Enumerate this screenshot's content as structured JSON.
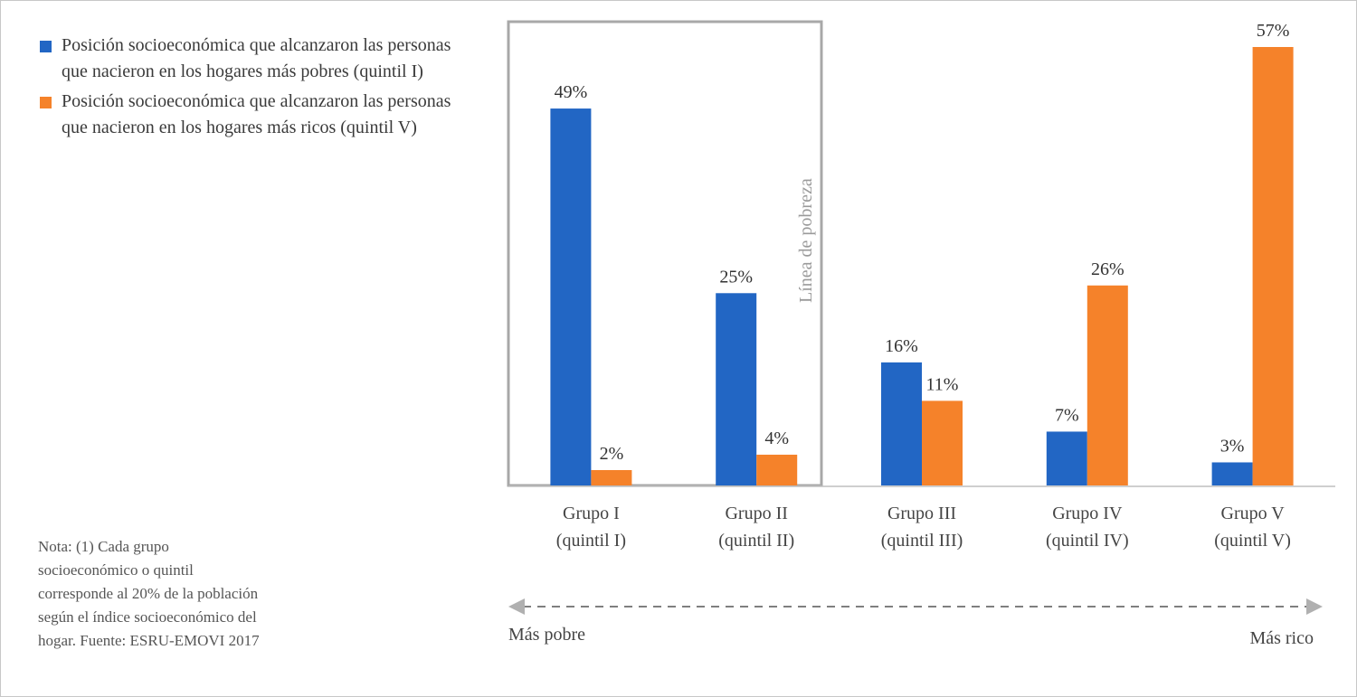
{
  "chart_data": {
    "type": "bar",
    "categories": [
      [
        "Grupo I",
        "(quintil I)"
      ],
      [
        "Grupo II",
        "(quintil II)"
      ],
      [
        "Grupo III",
        "(quintil III)"
      ],
      [
        "Grupo IV",
        "(quintil IV)"
      ],
      [
        "Grupo V",
        "(quintil V)"
      ]
    ],
    "series": [
      {
        "name": "Posición socioeconómica que alcanzaron las personas que nacieron en los hogares más pobres (quintil I)",
        "color": "#2266c4",
        "values": [
          49,
          25,
          16,
          7,
          3
        ],
        "labels": [
          "49%",
          "25%",
          "16%",
          "7%",
          "3%"
        ]
      },
      {
        "name": "Posición socioeconómica que alcanzaron las personas que nacieron en los hogares más ricos (quintil V)",
        "color": "#f5822a",
        "values": [
          2,
          4,
          11,
          26,
          57
        ],
        "labels": [
          "2%",
          "4%",
          "11%",
          "26%",
          "57%"
        ]
      }
    ],
    "ylim": [
      0,
      60
    ],
    "poverty_line_label": "Línea de pobreza",
    "axis_arrow": {
      "left_label": "Más pobre",
      "right_label": "Más rico"
    },
    "legend_position": "top-left",
    "grid": false
  },
  "note": "Nota: (1) Cada grupo\nsocioeconómico o quintil\ncorresponde al 20% de la población\nsegún el índice socioeconómico del\nhogar. Fuente: ESRU-EMOVI 2017"
}
